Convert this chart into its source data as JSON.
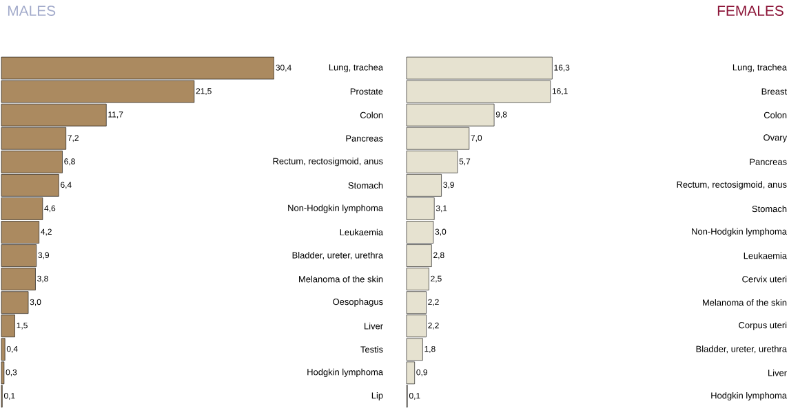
{
  "chart_data": [
    {
      "type": "bar",
      "orientation": "horizontal",
      "title": "MALES",
      "color": "#ab8a60",
      "categories": [
        "Lung, trachea",
        "Prostate",
        "Colon",
        "Pancreas",
        "Rectum, rectosigmoid, anus",
        "Stomach",
        "Non-Hodgkin lymphoma",
        "Leukaemia",
        "Bladder, ureter, urethra",
        "Melanoma of the skin",
        "Oesophagus",
        "Liver",
        "Testis",
        "Hodgkin lymphoma",
        "Lip"
      ],
      "values": [
        30.4,
        21.5,
        11.7,
        7.2,
        6.8,
        6.4,
        4.6,
        4.2,
        3.9,
        3.8,
        3.0,
        1.5,
        0.4,
        0.3,
        0.1
      ],
      "value_labels": [
        "30,4",
        "21,5",
        "11,7",
        "7,2",
        "6,8",
        "6,4",
        "4,6",
        "4,2",
        "3,9",
        "3,8",
        "3,0",
        "1,5",
        "0,4",
        "0,3",
        "0,1"
      ]
    },
    {
      "type": "bar",
      "orientation": "horizontal",
      "title": "FEMALES",
      "color": "#e6e2d0",
      "categories": [
        "Lung, trachea",
        "Breast",
        "Colon",
        "Ovary",
        "Pancreas",
        "Rectum, rectosigmoid, anus",
        "Stomach",
        "Non-Hodgkin lymphoma",
        "Leukaemia",
        "Cervix uteri",
        "Melanoma of the skin",
        "Corpus uteri",
        "Bladder, ureter, urethra",
        "Liver",
        "Hodgkin lymphoma"
      ],
      "values": [
        16.3,
        16.1,
        9.8,
        7.0,
        5.7,
        3.9,
        3.1,
        3.0,
        2.8,
        2.5,
        2.2,
        2.2,
        1.8,
        0.9,
        0.1
      ],
      "value_labels": [
        "16,3",
        "16,1",
        "9,8",
        "7,0",
        "5,7",
        "3,9",
        "3,1",
        "3,0",
        "2,8",
        "2,5",
        "2,2",
        "2,2",
        "1,8",
        "0,9",
        "0,1"
      ]
    }
  ]
}
